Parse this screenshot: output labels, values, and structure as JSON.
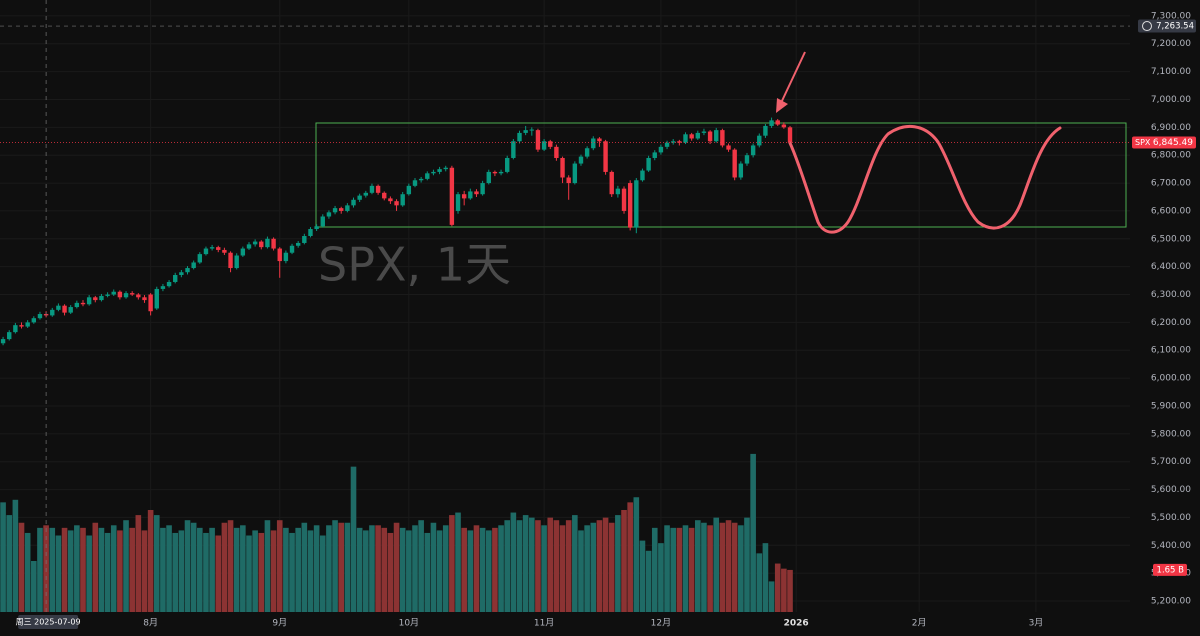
{
  "chart_data": {
    "type": "candlestick",
    "title": "SPX, 1天",
    "up_color": "#089981",
    "down_color": "#f23645",
    "volume_up_color": "#1f6b66",
    "volume_down_color": "#8c3333",
    "candles": [
      [
        6125,
        6148,
        6118,
        6140
      ],
      [
        6140,
        6172,
        6135,
        6165
      ],
      [
        6165,
        6198,
        6160,
        6190
      ],
      [
        6190,
        6200,
        6178,
        6185
      ],
      [
        6185,
        6208,
        6180,
        6200
      ],
      [
        6200,
        6222,
        6195,
        6215
      ],
      [
        6215,
        6238,
        6210,
        6230
      ],
      [
        6230,
        6240,
        6218,
        6225
      ],
      [
        6225,
        6252,
        6220,
        6245
      ],
      [
        6245,
        6268,
        6240,
        6260
      ],
      [
        6260,
        6265,
        6225,
        6235
      ],
      [
        6235,
        6262,
        6230,
        6255
      ],
      [
        6255,
        6278,
        6250,
        6270
      ],
      [
        6270,
        6280,
        6258,
        6265
      ],
      [
        6265,
        6298,
        6260,
        6290
      ],
      [
        6290,
        6295,
        6272,
        6280
      ],
      [
        6280,
        6302,
        6275,
        6295
      ],
      [
        6295,
        6308,
        6290,
        6300
      ],
      [
        6300,
        6318,
        6295,
        6310
      ],
      [
        6310,
        6315,
        6282,
        6290
      ],
      [
        6290,
        6312,
        6285,
        6305
      ],
      [
        6305,
        6312,
        6295,
        6300
      ],
      [
        6300,
        6305,
        6282,
        6290
      ],
      [
        6290,
        6298,
        6270,
        6280
      ],
      [
        6300,
        6305,
        6225,
        6240
      ],
      [
        6250,
        6328,
        6245,
        6320
      ],
      [
        6320,
        6338,
        6312,
        6330
      ],
      [
        6330,
        6352,
        6325,
        6345
      ],
      [
        6345,
        6378,
        6340,
        6370
      ],
      [
        6370,
        6388,
        6362,
        6380
      ],
      [
        6380,
        6402,
        6372,
        6395
      ],
      [
        6395,
        6422,
        6390,
        6415
      ],
      [
        6415,
        6452,
        6410,
        6445
      ],
      [
        6445,
        6472,
        6440,
        6465
      ],
      [
        6465,
        6478,
        6458,
        6470
      ],
      [
        6470,
        6475,
        6452,
        6460
      ],
      [
        6460,
        6468,
        6442,
        6450
      ],
      [
        6450,
        6455,
        6380,
        6395
      ],
      [
        6395,
        6448,
        6390,
        6440
      ],
      [
        6440,
        6472,
        6435,
        6465
      ],
      [
        6465,
        6488,
        6460,
        6480
      ],
      [
        6480,
        6498,
        6472,
        6490
      ],
      [
        6490,
        6495,
        6462,
        6470
      ],
      [
        6470,
        6508,
        6465,
        6500
      ],
      [
        6500,
        6505,
        6458,
        6465
      ],
      [
        6465,
        6470,
        6360,
        6420
      ],
      [
        6420,
        6458,
        6412,
        6450
      ],
      [
        6450,
        6482,
        6445,
        6475
      ],
      [
        6475,
        6492,
        6468,
        6485
      ],
      [
        6485,
        6518,
        6480,
        6510
      ],
      [
        6510,
        6542,
        6505,
        6535
      ],
      [
        6535,
        6552,
        6528,
        6545
      ],
      [
        6545,
        6588,
        6540,
        6580
      ],
      [
        6580,
        6602,
        6572,
        6595
      ],
      [
        6595,
        6618,
        6588,
        6610
      ],
      [
        6610,
        6615,
        6590,
        6600
      ],
      [
        6600,
        6628,
        6595,
        6620
      ],
      [
        6620,
        6648,
        6612,
        6640
      ],
      [
        6640,
        6662,
        6632,
        6655
      ],
      [
        6655,
        6672,
        6648,
        6665
      ],
      [
        6665,
        6698,
        6660,
        6690
      ],
      [
        6690,
        6695,
        6658,
        6665
      ],
      [
        6665,
        6670,
        6638,
        6645
      ],
      [
        6645,
        6652,
        6625,
        6635
      ],
      [
        6635,
        6642,
        6600,
        6620
      ],
      [
        6620,
        6668,
        6615,
        6660
      ],
      [
        6660,
        6698,
        6655,
        6690
      ],
      [
        6690,
        6718,
        6685,
        6710
      ],
      [
        6710,
        6722,
        6702,
        6715
      ],
      [
        6715,
        6742,
        6710,
        6735
      ],
      [
        6735,
        6748,
        6728,
        6740
      ],
      [
        6740,
        6758,
        6732,
        6750
      ],
      [
        6750,
        6762,
        6742,
        6755
      ],
      [
        6755,
        6762,
        6545,
        6550
      ],
      [
        6600,
        6668,
        6590,
        6660
      ],
      [
        6660,
        6672,
        6620,
        6645
      ],
      [
        6645,
        6680,
        6640,
        6670
      ],
      [
        6670,
        6678,
        6650,
        6660
      ],
      [
        6660,
        6708,
        6655,
        6700
      ],
      [
        6700,
        6748,
        6695,
        6740
      ],
      [
        6740,
        6745,
        6725,
        6735
      ],
      [
        6735,
        6748,
        6728,
        6740
      ],
      [
        6740,
        6798,
        6735,
        6790
      ],
      [
        6790,
        6858,
        6785,
        6850
      ],
      [
        6850,
        6888,
        6842,
        6880
      ],
      [
        6880,
        6905,
        6872,
        6890
      ],
      [
        6890,
        6900,
        6870,
        6892
      ],
      [
        6890,
        6895,
        6812,
        6820
      ],
      [
        6820,
        6858,
        6815,
        6850
      ],
      [
        6850,
        6855,
        6822,
        6830
      ],
      [
        6830,
        6838,
        6780,
        6790
      ],
      [
        6790,
        6795,
        6700,
        6720
      ],
      [
        6720,
        6728,
        6640,
        6700
      ],
      [
        6700,
        6778,
        6695,
        6770
      ],
      [
        6770,
        6802,
        6762,
        6795
      ],
      [
        6795,
        6832,
        6788,
        6825
      ],
      [
        6825,
        6868,
        6818,
        6860
      ],
      [
        6860,
        6865,
        6830,
        6850
      ],
      [
        6850,
        6855,
        6730,
        6740
      ],
      [
        6740,
        6745,
        6650,
        6660
      ],
      [
        6660,
        6690,
        6648,
        6680
      ],
      [
        6680,
        6688,
        6590,
        6600
      ],
      [
        6700,
        6710,
        6530,
        6540
      ],
      [
        6540,
        6718,
        6520,
        6710
      ],
      [
        6710,
        6752,
        6705,
        6745
      ],
      [
        6745,
        6798,
        6740,
        6790
      ],
      [
        6790,
        6818,
        6782,
        6810
      ],
      [
        6810,
        6838,
        6802,
        6830
      ],
      [
        6830,
        6852,
        6822,
        6845
      ],
      [
        6845,
        6858,
        6838,
        6850
      ],
      [
        6850,
        6855,
        6835,
        6845
      ],
      [
        6845,
        6882,
        6840,
        6875
      ],
      [
        6875,
        6880,
        6852,
        6860
      ],
      [
        6860,
        6888,
        6855,
        6880
      ],
      [
        6880,
        6895,
        6872,
        6885
      ],
      [
        6885,
        6890,
        6840,
        6850
      ],
      [
        6850,
        6898,
        6845,
        6890
      ],
      [
        6890,
        6895,
        6828,
        6835
      ],
      [
        6835,
        6842,
        6812,
        6820
      ],
      [
        6820,
        6825,
        6710,
        6720
      ],
      [
        6720,
        6778,
        6712,
        6770
      ],
      [
        6770,
        6808,
        6762,
        6800
      ],
      [
        6800,
        6842,
        6792,
        6835
      ],
      [
        6835,
        6878,
        6828,
        6870
      ],
      [
        6870,
        6912,
        6862,
        6905
      ],
      [
        6905,
        6935,
        6898,
        6925
      ],
      [
        6925,
        6930,
        6905,
        6910
      ],
      [
        6910,
        6918,
        6895,
        6900
      ],
      [
        6900,
        6905,
        6840,
        6845.49
      ]
    ],
    "volume": {
      "values": [
        4.3,
        3.8,
        4.4,
        3.5,
        3.1,
        2.0,
        3.3,
        3.4,
        3.3,
        3.0,
        3.3,
        3.2,
        3.4,
        3.3,
        3.0,
        3.5,
        3.3,
        3.1,
        3.4,
        3.2,
        3.6,
        3.3,
        3.8,
        3.2,
        4.0,
        3.8,
        3.3,
        3.4,
        3.1,
        3.2,
        3.6,
        3.5,
        3.3,
        3.1,
        3.3,
        3.0,
        3.5,
        3.6,
        3.3,
        3.4,
        3.0,
        3.2,
        3.1,
        3.6,
        3.2,
        3.6,
        3.3,
        3.1,
        3.3,
        3.5,
        3.2,
        3.4,
        3.0,
        3.4,
        3.6,
        3.5,
        3.5,
        5.7,
        3.3,
        3.2,
        3.4,
        3.4,
        3.3,
        3.1,
        3.5,
        3.3,
        3.2,
        3.4,
        3.6,
        3.1,
        3.5,
        3.2,
        3.4,
        3.8,
        3.9,
        3.3,
        3.2,
        3.4,
        3.3,
        3.2,
        3.3,
        3.4,
        3.6,
        3.9,
        3.6,
        3.8,
        3.7,
        3.6,
        3.4,
        3.7,
        3.6,
        3.4,
        3.6,
        3.8,
        3.2,
        3.4,
        3.5,
        3.6,
        3.7,
        3.5,
        3.8,
        4.0,
        4.3,
        4.5,
        2.8,
        2.4,
        3.3,
        2.7,
        3.4,
        3.3,
        3.3,
        3.4,
        3.3,
        3.6,
        3.5,
        3.4,
        3.7,
        3.5,
        3.6,
        3.5,
        3.4,
        3.7,
        6.2,
        2.3,
        2.7,
        1.2,
        1.9,
        1.7,
        1.65
      ],
      "last_label": "1.65 B"
    },
    "last_price": {
      "symbol": "SPX",
      "value": 6845.49,
      "label": "6,845.49"
    },
    "crosshair": {
      "value": 7263.54,
      "label": "7,263.54",
      "x": 7,
      "x_label": "周三 2025-07-09"
    },
    "xlim": [
      -0.5,
      183.3
    ],
    "xticks": [
      {
        "value": 24,
        "label": "8月"
      },
      {
        "value": 45,
        "label": "9月"
      },
      {
        "value": 66,
        "label": "10月"
      },
      {
        "value": 88,
        "label": "11月"
      },
      {
        "value": 107,
        "label": "12月"
      },
      {
        "value": 129,
        "label": "2026"
      },
      {
        "value": 149,
        "label": "2月"
      },
      {
        "value": 168,
        "label": "3月"
      }
    ],
    "ylim": [
      5157,
      7357
    ],
    "yticks": [
      {
        "value": 7300,
        "label": "7,300.00"
      },
      {
        "value": 7200,
        "label": "7,200.00"
      },
      {
        "value": 7100,
        "label": "7,100.00"
      },
      {
        "value": 7000,
        "label": "7,000.00"
      },
      {
        "value": 6900,
        "label": "6,900.00"
      },
      {
        "value": 6800,
        "label": "6,800.00"
      },
      {
        "value": 6700,
        "label": "6,700.00"
      },
      {
        "value": 6600,
        "label": "6,600.00"
      },
      {
        "value": 6500,
        "label": "6,500.00"
      },
      {
        "value": 6400,
        "label": "6,400.00"
      },
      {
        "value": 6300,
        "label": "6,300.00"
      },
      {
        "value": 6200,
        "label": "6,200.00"
      },
      {
        "value": 6100,
        "label": "6,100.00"
      },
      {
        "value": 6000,
        "label": "6,000.00"
      },
      {
        "value": 5900,
        "label": "5,900.00"
      },
      {
        "value": 5800,
        "label": "5,800.00"
      },
      {
        "value": 5700,
        "label": "5,700.00"
      },
      {
        "value": 5600,
        "label": "5,600.00"
      },
      {
        "value": 5500,
        "label": "5,500.00"
      },
      {
        "value": 5400,
        "label": "5,400.00"
      },
      {
        "value": 5300,
        "label": "5,300.00"
      },
      {
        "value": 5200,
        "label": "5,200.00"
      }
    ],
    "grid": true
  }
}
